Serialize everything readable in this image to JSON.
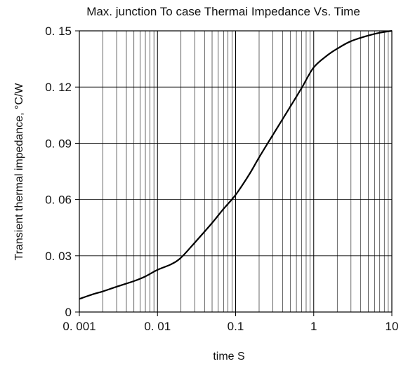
{
  "chart_data": {
    "type": "line",
    "title": "Max. junction To case Thermai Impedance Vs. Time",
    "xlabel": "time S",
    "ylabel": "Transient thermal impedance, °C/W",
    "x_scale": "log",
    "xlim": [
      0.001,
      10
    ],
    "ylim": [
      0,
      0.15
    ],
    "grid": true,
    "x_ticks": [
      0.001,
      0.01,
      0.1,
      1,
      10
    ],
    "x_tick_labels": [
      "0. 001",
      "0. 01",
      "0.1",
      "1",
      "10"
    ],
    "y_ticks": [
      0,
      0.03,
      0.06,
      0.09,
      0.12,
      0.15
    ],
    "y_tick_labels": [
      "0",
      "0. 03",
      "0. 06",
      "0. 09",
      "0. 12",
      "0. 15"
    ],
    "series": [
      {
        "x": [
          0.001,
          0.0015,
          0.002,
          0.003,
          0.005,
          0.007,
          0.01,
          0.015,
          0.02,
          0.03,
          0.05,
          0.07,
          0.1,
          0.15,
          0.2,
          0.3,
          0.5,
          0.7,
          1,
          1.5,
          2,
          3,
          5,
          7,
          10
        ],
        "y": [
          0.007,
          0.0095,
          0.011,
          0.0135,
          0.0165,
          0.019,
          0.0225,
          0.0255,
          0.029,
          0.037,
          0.0475,
          0.055,
          0.0625,
          0.0735,
          0.0825,
          0.0945,
          0.1095,
          0.1195,
          0.1305,
          0.137,
          0.1405,
          0.1445,
          0.1475,
          0.149,
          0.15
        ]
      }
    ]
  }
}
